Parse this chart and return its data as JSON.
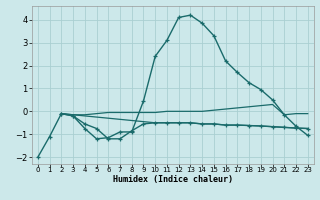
{
  "xlabel": "Humidex (Indice chaleur)",
  "bg_color": "#cce8ea",
  "grid_color": "#aacfd2",
  "line_color": "#1a6b6b",
  "xlim": [
    -0.5,
    23.5
  ],
  "ylim": [
    -2.3,
    4.6
  ],
  "yticks": [
    -2,
    -1,
    0,
    1,
    2,
    3,
    4
  ],
  "xticks": [
    0,
    1,
    2,
    3,
    4,
    5,
    6,
    7,
    8,
    9,
    10,
    11,
    12,
    13,
    14,
    15,
    16,
    17,
    18,
    19,
    20,
    21,
    22,
    23
  ],
  "s1_x": [
    0,
    1,
    2,
    3,
    4,
    5,
    6,
    7,
    8,
    9,
    10,
    11,
    12,
    13,
    14,
    15,
    16,
    17,
    18,
    19,
    20,
    21,
    22,
    23
  ],
  "s1_y": [
    -2.0,
    -1.1,
    -0.1,
    -0.2,
    -0.75,
    -1.2,
    -1.15,
    -0.9,
    -0.9,
    0.45,
    2.4,
    3.1,
    4.1,
    4.2,
    3.85,
    3.3,
    2.2,
    1.7,
    1.25,
    0.95,
    0.5,
    -0.15,
    -0.65,
    -1.05
  ],
  "s2_x": [
    2,
    3,
    4,
    5,
    6,
    7,
    8,
    9,
    10,
    11,
    12,
    13,
    14,
    15,
    16,
    17,
    18,
    19,
    20,
    21,
    22,
    23
  ],
  "s2_y": [
    -0.1,
    -0.15,
    -0.15,
    -0.1,
    -0.05,
    -0.05,
    -0.05,
    -0.05,
    -0.05,
    0.0,
    0.0,
    0.0,
    0.0,
    0.05,
    0.1,
    0.15,
    0.2,
    0.25,
    0.3,
    -0.15,
    -0.1,
    -0.1
  ],
  "s3_x": [
    2,
    3,
    4,
    5,
    6,
    7,
    8,
    9,
    10,
    11,
    12,
    13,
    14,
    15,
    16,
    17,
    18,
    19,
    20,
    21,
    22,
    23
  ],
  "s3_y": [
    -0.1,
    -0.15,
    -0.2,
    -0.25,
    -0.3,
    -0.35,
    -0.4,
    -0.45,
    -0.5,
    -0.5,
    -0.5,
    -0.5,
    -0.55,
    -0.55,
    -0.6,
    -0.6,
    -0.62,
    -0.64,
    -0.67,
    -0.7,
    -0.73,
    -0.75
  ],
  "s4_x": [
    2,
    3,
    4,
    5,
    6,
    7,
    8,
    9,
    10,
    11,
    12,
    13,
    14,
    15,
    16,
    17,
    18,
    19,
    20,
    21,
    22,
    23
  ],
  "s4_y": [
    -0.1,
    -0.2,
    -0.55,
    -0.75,
    -1.2,
    -1.2,
    -0.85,
    -0.55,
    -0.5,
    -0.5,
    -0.5,
    -0.5,
    -0.55,
    -0.55,
    -0.6,
    -0.6,
    -0.62,
    -0.64,
    -0.67,
    -0.7,
    -0.73,
    -0.75
  ]
}
